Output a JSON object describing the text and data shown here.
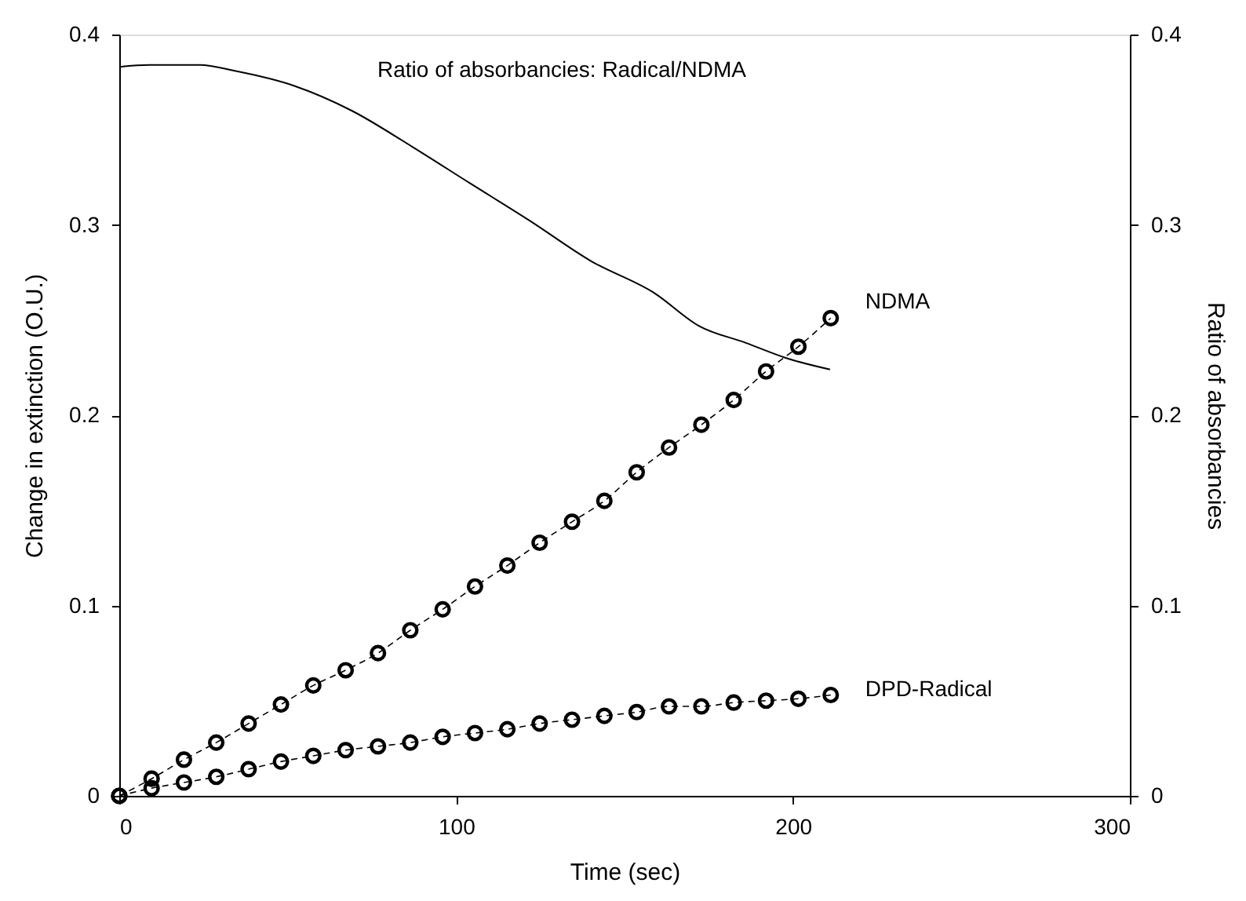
{
  "chart_data": {
    "type": "line",
    "xlabel": "Time (sec)",
    "ylabel": "Change in extinction (O.U.)",
    "y2label": "Ratio of absorbancies",
    "xlim": [
      0,
      300
    ],
    "xticks": [
      0,
      100,
      200,
      300
    ],
    "ylim": [
      0,
      0.4
    ],
    "yticks": [
      0,
      0.1,
      0.2,
      0.3,
      0.4
    ],
    "y2lim": [
      0,
      0.4
    ],
    "y2ticks": [
      0,
      0.1,
      0.2,
      0.3,
      0.4
    ],
    "grid": false,
    "series": [
      {
        "name": "NDMA",
        "color": "#000000",
        "marker": "circle",
        "line_style": "dashed",
        "x": [
          0,
          9.6,
          19.2,
          28.8,
          38.4,
          48,
          57.6,
          67.2,
          76.8,
          86.4,
          96,
          105.6,
          115.2,
          124.8,
          134.4,
          144,
          153.6,
          163.2,
          172.8,
          182.4,
          192,
          201.6,
          211.2
        ],
        "values": [
          0,
          0.009,
          0.019,
          0.028,
          0.038,
          0.048,
          0.058,
          0.066,
          0.075,
          0.087,
          0.098,
          0.11,
          0.121,
          0.133,
          0.144,
          0.155,
          0.17,
          0.183,
          0.195,
          0.208,
          0.223,
          0.236,
          0.251
        ]
      },
      {
        "name": "DPD-Radical",
        "color": "#000000",
        "marker": "circle",
        "line_style": "dashed",
        "x": [
          0,
          9.6,
          19.2,
          28.8,
          38.4,
          48,
          57.6,
          67.2,
          76.8,
          86.4,
          96,
          105.6,
          115.2,
          124.8,
          134.4,
          144,
          153.6,
          163.2,
          172.8,
          182.4,
          192,
          201.6,
          211.2
        ],
        "values": [
          0,
          0.004,
          0.007,
          0.01,
          0.014,
          0.018,
          0.021,
          0.024,
          0.026,
          0.028,
          0.031,
          0.033,
          0.035,
          0.038,
          0.04,
          0.042,
          0.044,
          0.047,
          0.047,
          0.049,
          0.05,
          0.051,
          0.053
        ]
      },
      {
        "name": "Ratio of absorbancies: Radical/NDMA",
        "axis": "y2",
        "color": "#000000",
        "marker": "none",
        "line_style": "solid",
        "x": [
          0,
          9,
          24,
          34,
          52,
          69,
          87,
          104,
          122,
          140,
          159,
          172,
          186,
          198,
          211
        ],
        "values": [
          0.383,
          0.384,
          0.384,
          0.381,
          0.373,
          0.36,
          0.341,
          0.322,
          0.302,
          0.281,
          0.264,
          0.247,
          0.238,
          0.23,
          0.224
        ]
      }
    ]
  }
}
